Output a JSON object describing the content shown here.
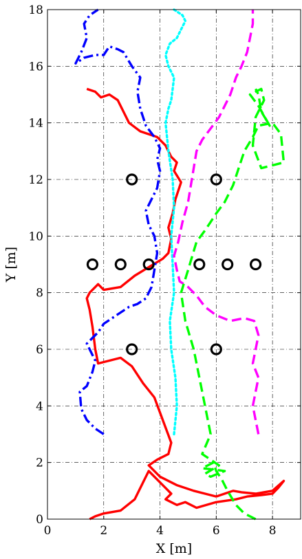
{
  "chart_data": {
    "type": "line",
    "title": "",
    "xlabel": "X [m]",
    "ylabel": "Y [m]",
    "xlim": [
      0,
      9
    ],
    "ylim": [
      0,
      18
    ],
    "xticks": [
      0,
      2,
      4,
      6,
      8
    ],
    "yticks": [
      0,
      2,
      4,
      6,
      8,
      10,
      12,
      14,
      16,
      18
    ],
    "xtick_labels": [
      "0",
      "2",
      "4",
      "6",
      "8"
    ],
    "ytick_labels": [
      "0",
      "2",
      "4",
      "6",
      "8",
      "10",
      "12",
      "14",
      "16",
      "18"
    ],
    "grid": "dash-dot",
    "series": [
      {
        "color": "#ff0000",
        "style": "solid",
        "x": [
          1.5,
          1.7,
          2.0,
          2.6,
          3.1,
          3.4,
          3.6,
          4.1,
          4.4,
          4.2,
          4.6,
          4.9,
          5.3,
          6.0,
          6.7,
          7.1,
          7.6,
          8.0,
          8.2,
          8.4,
          8.0,
          7.4,
          6.9,
          6.6,
          6.0,
          5.6,
          5.2,
          4.6,
          4.0,
          3.6,
          3.9,
          4.3,
          4.4,
          4.1,
          3.8,
          3.4,
          3.0,
          2.6,
          2.2,
          1.8,
          1.7,
          1.6,
          1.5,
          1.4,
          1.5,
          1.8,
          2.0,
          2.6,
          3.1,
          3.6,
          4.1,
          4.3,
          4.4,
          4.3,
          4.45,
          4.55,
          4.75,
          4.5,
          4.6,
          4.4,
          4.2,
          4.0,
          3.9,
          3.6,
          3.3,
          2.9,
          2.7,
          2.5,
          2.2,
          1.9,
          1.7,
          1.4
        ],
        "y": [
          0.0,
          0.1,
          0.2,
          0.3,
          0.7,
          1.3,
          1.7,
          1.2,
          0.9,
          0.7,
          0.5,
          0.6,
          0.4,
          0.6,
          0.7,
          0.8,
          0.85,
          0.9,
          1.1,
          1.35,
          1.0,
          0.9,
          0.95,
          1.0,
          0.8,
          0.9,
          1.0,
          1.2,
          1.5,
          1.9,
          2.1,
          2.3,
          2.7,
          3.5,
          4.3,
          4.8,
          5.4,
          5.7,
          5.6,
          5.5,
          6.0,
          6.8,
          7.4,
          7.8,
          8.0,
          8.3,
          8.1,
          8.2,
          8.6,
          8.9,
          9.2,
          9.4,
          9.9,
          10.3,
          10.8,
          11.3,
          11.9,
          12.3,
          12.6,
          12.8,
          13.2,
          13.4,
          13.5,
          13.6,
          13.7,
          14.0,
          14.4,
          14.8,
          15.0,
          14.9,
          15.1,
          15.2
        ]
      },
      {
        "color": "#0000ff",
        "style": "dash-dot",
        "x": [
          2.0,
          1.7,
          1.4,
          1.2,
          1.15,
          1.4,
          1.6,
          1.7,
          1.5,
          1.4,
          1.6,
          1.8,
          2.0,
          2.3,
          2.6,
          2.9,
          3.2,
          3.5,
          3.7,
          3.8,
          3.9,
          3.8,
          3.6,
          3.5,
          3.7,
          3.9,
          4.0,
          3.9,
          4.0,
          3.8,
          3.5,
          3.3,
          3.2,
          3.3,
          3.0,
          2.7,
          2.5,
          2.2,
          2.0,
          1.7,
          1.3,
          1.0,
          1.2,
          1.4,
          1.3,
          1.5,
          1.8
        ],
        "y": [
          3.0,
          3.2,
          3.5,
          3.9,
          4.5,
          4.7,
          5.2,
          5.6,
          6.0,
          6.2,
          6.4,
          6.6,
          6.9,
          7.1,
          7.3,
          7.5,
          7.6,
          7.8,
          8.2,
          8.8,
          9.4,
          10.0,
          10.4,
          10.9,
          11.3,
          11.7,
          12.3,
          12.7,
          13.1,
          13.5,
          13.9,
          14.5,
          15.1,
          15.6,
          16.0,
          16.5,
          16.6,
          16.7,
          16.4,
          16.4,
          16.3,
          16.1,
          16.5,
          17.0,
          17.5,
          17.8,
          18.0
        ]
      },
      {
        "color": "#00ffff",
        "style": "dotted",
        "x": [
          4.5,
          4.6,
          4.55,
          4.4,
          4.35,
          4.5,
          4.45,
          4.4,
          4.5,
          4.45,
          4.3,
          4.2,
          4.3,
          4.4,
          4.45,
          4.5,
          4.3,
          4.2,
          4.35,
          4.6,
          4.7,
          4.8,
          4.9,
          4.8,
          4.5
        ],
        "y": [
          3.0,
          4.0,
          5.0,
          6.0,
          7.0,
          8.0,
          9.0,
          10.0,
          11.0,
          12.0,
          13.0,
          14.0,
          14.5,
          14.8,
          15.2,
          15.6,
          16.0,
          16.4,
          16.8,
          17.0,
          17.2,
          17.4,
          17.6,
          17.8,
          18.0
        ]
      },
      {
        "color": "#ff00ff",
        "style": "dashed",
        "x": [
          7.5,
          7.4,
          7.3,
          7.4,
          7.5,
          7.3,
          7.4,
          7.5,
          7.35,
          7.0,
          6.5,
          6.0,
          5.6,
          5.3,
          5.0,
          4.7,
          4.6,
          4.5,
          4.65,
          4.8,
          5.0,
          5.1,
          5.2,
          5.3,
          5.5,
          5.8,
          6.1,
          6.3,
          6.5,
          6.7,
          6.9,
          7.1,
          7.2,
          7.3,
          7.3
        ],
        "y": [
          3.0,
          3.5,
          4.0,
          4.5,
          5.0,
          5.5,
          6.0,
          6.5,
          7.0,
          7.1,
          7.0,
          7.2,
          7.5,
          7.9,
          8.2,
          8.4,
          8.8,
          9.3,
          9.8,
          10.5,
          11.2,
          11.8,
          12.4,
          13.0,
          13.4,
          13.8,
          14.2,
          14.6,
          15.0,
          15.6,
          16.0,
          16.5,
          17.0,
          17.5,
          18.0
        ]
      },
      {
        "color": "#00ff00",
        "style": "dashed",
        "x": [
          7.4,
          7.0,
          6.7,
          6.4,
          6.2,
          6.0,
          5.9,
          5.5,
          6.3,
          5.8,
          5.6,
          6.1,
          5.5,
          5.8,
          5.6,
          5.4,
          5.2,
          4.9,
          4.75,
          5.0,
          5.3,
          5.6,
          5.8,
          6.0,
          6.3,
          6.6,
          6.8,
          7.0,
          7.3,
          7.5,
          8.0,
          8.3,
          8.4,
          7.6,
          7.3,
          7.4,
          7.7,
          7.6,
          7.2,
          7.5,
          7.9,
          7.6,
          7.5,
          7.4
        ],
        "y": [
          0.0,
          0.2,
          0.5,
          1.0,
          1.4,
          1.7,
          2.0,
          1.8,
          1.7,
          1.5,
          1.6,
          1.9,
          2.3,
          3.0,
          4.0,
          5.0,
          6.0,
          7.0,
          8.0,
          8.8,
          9.8,
          10.2,
          10.5,
          10.8,
          11.2,
          11.8,
          12.4,
          13.0,
          13.5,
          13.9,
          14.0,
          13.6,
          12.6,
          12.4,
          13.2,
          14.2,
          14.8,
          15.2,
          15.0,
          14.6,
          13.9,
          14.4,
          15.0,
          15.2
        ]
      }
    ],
    "markers": {
      "shape": "open-circle",
      "color": "#000000",
      "x": [
        3,
        6,
        1.6,
        2.6,
        3.6,
        5.4,
        6.4,
        7.4,
        3,
        6
      ],
      "y": [
        12,
        12,
        9,
        9,
        9,
        9,
        9,
        9,
        6,
        6
      ]
    }
  }
}
